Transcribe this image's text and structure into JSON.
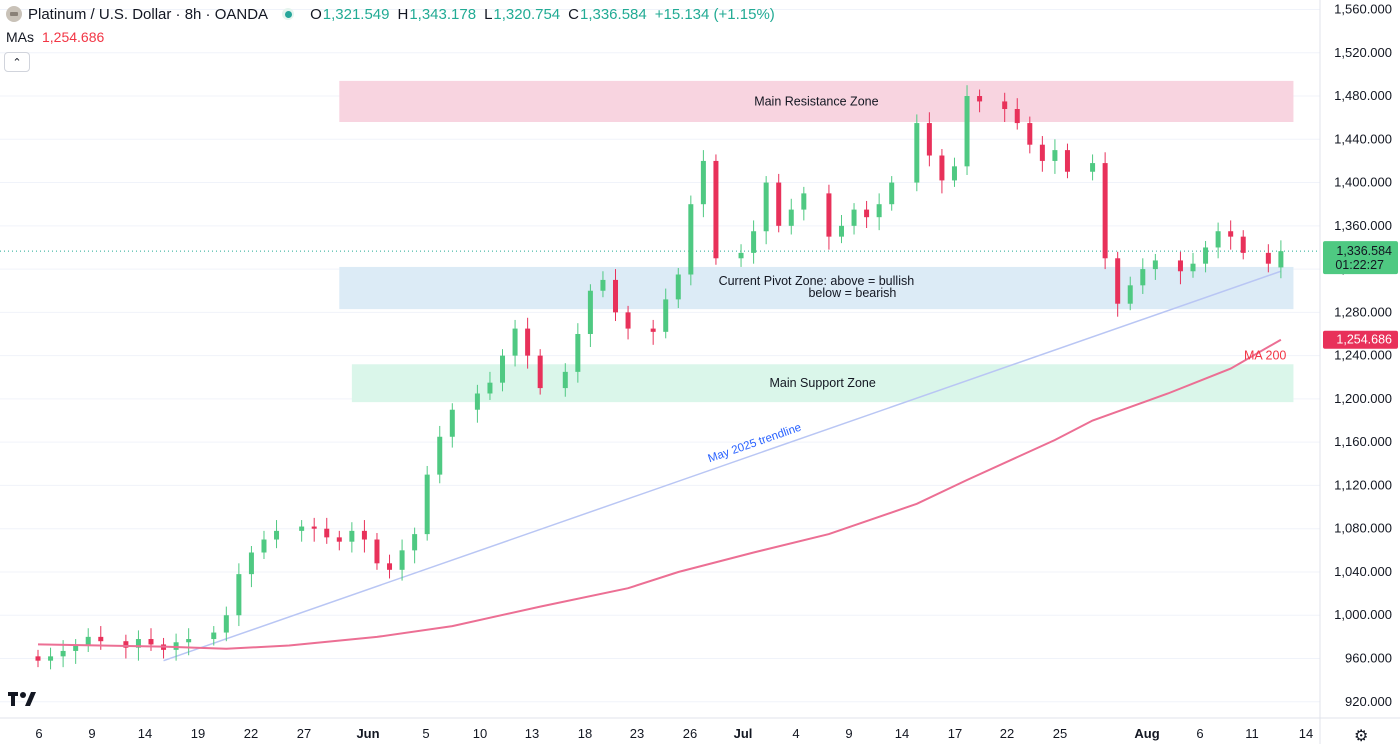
{
  "header": {
    "title": "Platinum / U.S. Dollar · 8h · OANDA",
    "open_label": "O",
    "open": "1,321.549",
    "high_label": "H",
    "high": "1,343.178",
    "low_label": "L",
    "low": "1,320.754",
    "close_label": "C",
    "close": "1,336.584",
    "change": "+15.134 (+1.15%)"
  },
  "indicators": {
    "label": "MAs",
    "value": "1,254.686"
  },
  "colors": {
    "up": "#4fc982",
    "down": "#e8315a",
    "ma": "#ec6f94",
    "trendline": "#b9c6f4",
    "resistance": "#f8d4e0",
    "pivot": "#dcebf6",
    "support": "#daf6ea"
  },
  "chart_data": {
    "type": "candlestick",
    "timeframe": "8h",
    "ylim": [
      905,
      1566
    ],
    "y_ticks": [
      "1,560.000",
      "1,520.000",
      "1,480.000",
      "1,440.000",
      "1,400.000",
      "1,360.000",
      "1,320.000",
      "1,280.000",
      "1,240.000",
      "1,200.000",
      "1,160.000",
      "1,120.000",
      "1,080.000",
      "1,040.000",
      "1,000.000",
      "960.000",
      "920.000"
    ],
    "x_ticks": [
      "6",
      "9",
      "14",
      "19",
      "22",
      "27",
      "Jun",
      "5",
      "10",
      "13",
      "18",
      "23",
      "26",
      "Jul",
      "4",
      "9",
      "14",
      "17",
      "22",
      "25",
      "Aug",
      "6",
      "11",
      "14"
    ],
    "x_range": [
      "2025-05-05",
      "2025-08-14"
    ],
    "last_price": {
      "value": 1336.584,
      "label": "1,336.584",
      "countdown": "01:22:27"
    },
    "ma_last": {
      "value": 1254.686,
      "label": "1,254.686"
    },
    "zones": [
      {
        "name": "Main Resistance Zone",
        "low": 1456,
        "high": 1494,
        "from": "2025-05-29",
        "to": "2025-08-13"
      },
      {
        "name": "Current Pivot Zone",
        "low": 1283,
        "high": 1322,
        "from": "2025-05-29",
        "to": "2025-08-13",
        "line1": "Current Pivot Zone: above = bullish",
        "line2": "below = bearish"
      },
      {
        "name": "Main Support Zone",
        "low": 1197,
        "high": 1232,
        "from": "2025-05-30",
        "to": "2025-08-13"
      }
    ],
    "trendline": {
      "label": "May 2025 trendline",
      "from": [
        "2025-05-15",
        958
      ],
      "to": [
        "2025-08-12",
        1318
      ]
    },
    "ma_label": "MA 200",
    "ma200": [
      [
        "2025-05-05",
        973
      ],
      [
        "2025-05-15",
        971
      ],
      [
        "2025-05-20",
        969
      ],
      [
        "2025-05-25",
        972
      ],
      [
        "2025-06-01",
        980
      ],
      [
        "2025-06-07",
        990
      ],
      [
        "2025-06-14",
        1008
      ],
      [
        "2025-06-21",
        1025
      ],
      [
        "2025-06-25",
        1040
      ],
      [
        "2025-07-01",
        1058
      ],
      [
        "2025-07-07",
        1075
      ],
      [
        "2025-07-14",
        1103
      ],
      [
        "2025-07-18",
        1125
      ],
      [
        "2025-07-25",
        1162
      ],
      [
        "2025-07-28",
        1180
      ],
      [
        "2025-08-03",
        1205
      ],
      [
        "2025-08-08",
        1228
      ],
      [
        "2025-08-12",
        1254.686
      ]
    ],
    "ohlc_closes": [
      [
        "2025-05-05",
        958
      ],
      [
        "2025-05-06",
        962
      ],
      [
        "2025-05-07",
        967
      ],
      [
        "2025-05-08",
        972
      ],
      [
        "2025-05-09",
        980
      ],
      [
        "2025-05-10",
        976
      ],
      [
        "2025-05-12",
        970
      ],
      [
        "2025-05-13",
        978
      ],
      [
        "2025-05-14",
        973
      ],
      [
        "2025-05-15",
        968
      ],
      [
        "2025-05-16",
        975
      ],
      [
        "2025-05-17",
        978
      ],
      [
        "2025-05-19",
        984
      ],
      [
        "2025-05-20",
        1000
      ],
      [
        "2025-05-21",
        1038
      ],
      [
        "2025-05-22",
        1058
      ],
      [
        "2025-05-23",
        1070
      ],
      [
        "2025-05-24",
        1078
      ],
      [
        "2025-05-26",
        1082
      ],
      [
        "2025-05-27",
        1080
      ],
      [
        "2025-05-28",
        1072
      ],
      [
        "2025-05-29",
        1068
      ],
      [
        "2025-05-30",
        1078
      ],
      [
        "2025-05-31",
        1070
      ],
      [
        "2025-06-01",
        1048
      ],
      [
        "2025-06-02",
        1042
      ],
      [
        "2025-06-03",
        1060
      ],
      [
        "2025-06-04",
        1075
      ],
      [
        "2025-06-05",
        1130
      ],
      [
        "2025-06-06",
        1165
      ],
      [
        "2025-06-07",
        1190
      ],
      [
        "2025-06-09",
        1205
      ],
      [
        "2025-06-10",
        1215
      ],
      [
        "2025-06-11",
        1240
      ],
      [
        "2025-06-12",
        1265
      ],
      [
        "2025-06-13",
        1240
      ],
      [
        "2025-06-14",
        1210
      ],
      [
        "2025-06-16",
        1225
      ],
      [
        "2025-06-17",
        1260
      ],
      [
        "2025-06-18",
        1300
      ],
      [
        "2025-06-19",
        1310
      ],
      [
        "2025-06-20",
        1280
      ],
      [
        "2025-06-21",
        1265
      ],
      [
        "2025-06-23",
        1262
      ],
      [
        "2025-06-24",
        1292
      ],
      [
        "2025-06-25",
        1315
      ],
      [
        "2025-06-26",
        1380
      ],
      [
        "2025-06-27",
        1420
      ],
      [
        "2025-06-28",
        1330
      ],
      [
        "2025-06-30",
        1335
      ],
      [
        "2025-07-01",
        1355
      ],
      [
        "2025-07-02",
        1400
      ],
      [
        "2025-07-03",
        1360
      ],
      [
        "2025-07-04",
        1375
      ],
      [
        "2025-07-05",
        1390
      ],
      [
        "2025-07-07",
        1350
      ],
      [
        "2025-07-08",
        1360
      ],
      [
        "2025-07-09",
        1375
      ],
      [
        "2025-07-10",
        1368
      ],
      [
        "2025-07-11",
        1380
      ],
      [
        "2025-07-12",
        1400
      ],
      [
        "2025-07-14",
        1455
      ],
      [
        "2025-07-15",
        1425
      ],
      [
        "2025-07-16",
        1402
      ],
      [
        "2025-07-17",
        1415
      ],
      [
        "2025-07-18",
        1480
      ],
      [
        "2025-07-19",
        1475
      ],
      [
        "2025-07-21",
        1468
      ],
      [
        "2025-07-22",
        1455
      ],
      [
        "2025-07-23",
        1435
      ],
      [
        "2025-07-24",
        1420
      ],
      [
        "2025-07-25",
        1430
      ],
      [
        "2025-07-26",
        1410
      ],
      [
        "2025-07-28",
        1418
      ],
      [
        "2025-07-29",
        1330
      ],
      [
        "2025-07-30",
        1288
      ],
      [
        "2025-07-31",
        1305
      ],
      [
        "2025-08-01",
        1320
      ],
      [
        "2025-08-02",
        1328
      ],
      [
        "2025-08-04",
        1318
      ],
      [
        "2025-08-05",
        1325
      ],
      [
        "2025-08-06",
        1340
      ],
      [
        "2025-08-07",
        1355
      ],
      [
        "2025-08-08",
        1350
      ],
      [
        "2025-08-09",
        1335
      ],
      [
        "2025-08-11",
        1325
      ],
      [
        "2025-08-12",
        1336.584
      ]
    ]
  }
}
